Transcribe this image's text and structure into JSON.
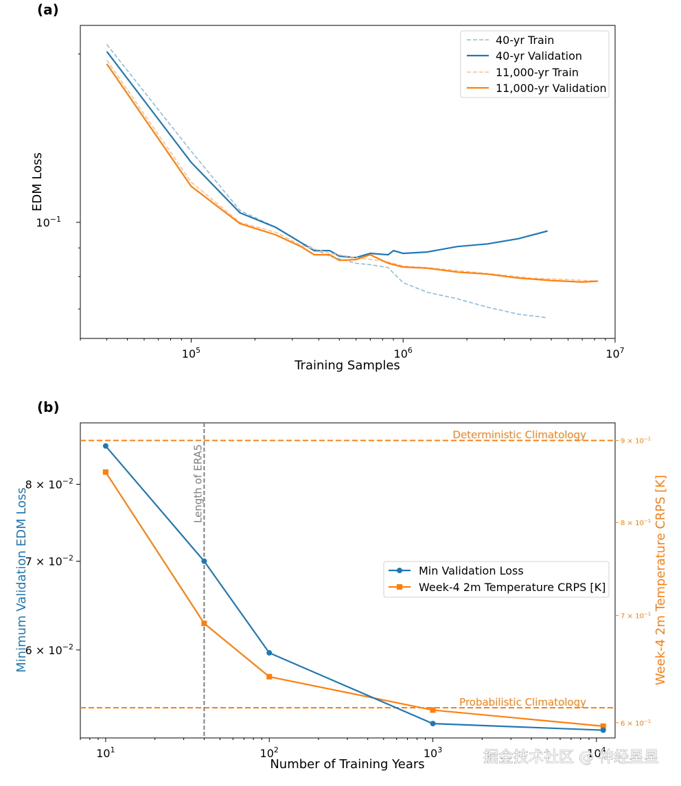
{
  "colors": {
    "blue": "#1f77b4",
    "orange": "#ff7f0e",
    "gray": "#7f7f7f",
    "light_blue": "#8fbbd9",
    "light_orange": "#ffbf86"
  },
  "panel_a": {
    "label": "(a)"
  },
  "panel_b": {
    "label": "(b)"
  },
  "watermark": "掘金技术社区 @ 神经星星",
  "chart_data": [
    {
      "type": "line",
      "panel": "(a)",
      "xlabel": "Training Samples",
      "ylabel": "EDM Loss",
      "xscale": "log",
      "yscale": "log",
      "xlim": [
        30000,
        10000000
      ],
      "ylim": [
        0.062,
        0.225
      ],
      "xticks": [
        {
          "value": 100000,
          "base": "10",
          "exp": "5"
        },
        {
          "value": 1000000,
          "base": "10",
          "exp": "6"
        },
        {
          "value": 10000000,
          "base": "10",
          "exp": "7"
        }
      ],
      "yticks": [
        {
          "value": 0.1,
          "base": "10",
          "exp": "−1"
        }
      ],
      "legend_position": "upper-right",
      "series": [
        {
          "name": "40-yr Train",
          "style": "dashed-light-blue",
          "x": [
            40000,
            100000,
            170000,
            250000,
            330000,
            450000,
            600000,
            700000,
            850000,
            1000000,
            1300000,
            1800000,
            2500000,
            3500000,
            4800000
          ],
          "y": [
            0.208,
            0.134,
            0.105,
            0.098,
            0.092,
            0.087,
            0.0845,
            0.084,
            0.083,
            0.078,
            0.075,
            0.073,
            0.0705,
            0.0685,
            0.0675
          ]
        },
        {
          "name": "40-yr Validation",
          "style": "solid-blue",
          "x": [
            40000,
            100000,
            170000,
            250000,
            330000,
            380000,
            450000,
            500000,
            600000,
            700000,
            850000,
            900000,
            1000000,
            1300000,
            1800000,
            2500000,
            3500000,
            4800000
          ],
          "y": [
            0.202,
            0.128,
            0.104,
            0.098,
            0.092,
            0.089,
            0.089,
            0.087,
            0.0865,
            0.088,
            0.0875,
            0.089,
            0.088,
            0.0885,
            0.0905,
            0.0915,
            0.0935,
            0.0965
          ]
        },
        {
          "name": "11,000-yr Train",
          "style": "dashed-light-orange",
          "x": [
            40000,
            100000,
            170000,
            250000,
            330000,
            450000,
            600000,
            850000,
            1000000,
            1300000,
            1800000,
            2500000,
            4000000,
            6000000,
            8300000
          ],
          "y": [
            0.195,
            0.118,
            0.1,
            0.096,
            0.091,
            0.088,
            0.0865,
            0.085,
            0.0835,
            0.083,
            0.082,
            0.081,
            0.0795,
            0.079,
            0.0785
          ]
        },
        {
          "name": "11,000-yr Validation",
          "style": "solid-orange",
          "x": [
            40000,
            100000,
            170000,
            250000,
            330000,
            380000,
            450000,
            500000,
            600000,
            700000,
            850000,
            1000000,
            1300000,
            1800000,
            2500000,
            3500000,
            5000000,
            7000000,
            8300000
          ],
          "y": [
            0.192,
            0.116,
            0.0995,
            0.095,
            0.0905,
            0.0875,
            0.0875,
            0.0855,
            0.0858,
            0.0875,
            0.0845,
            0.0832,
            0.0828,
            0.0815,
            0.0808,
            0.0795,
            0.0787,
            0.0782,
            0.0785
          ]
        }
      ]
    },
    {
      "type": "line",
      "panel": "(b)",
      "xlabel": "Number of Training Years",
      "ylabel_left": "Minimum Validation EDM Loss",
      "ylabel_right": "Week-4 2m Temperature CRPS [K]",
      "xscale": "log",
      "yscale": "log",
      "xlim": [
        7,
        13000
      ],
      "ylim_left": [
        0.0515,
        0.089
      ],
      "ylim_right": [
        0.587,
        0.923
      ],
      "xticks": [
        {
          "value": 10,
          "base": "10",
          "exp": "1"
        },
        {
          "value": 100,
          "base": "10",
          "exp": "2"
        },
        {
          "value": 1000,
          "base": "10",
          "exp": "3"
        },
        {
          "value": 10000,
          "base": "10",
          "exp": "4"
        }
      ],
      "yticks_left": [
        {
          "value": 0.06,
          "mant": "6 × 10",
          "exp": "−2"
        },
        {
          "value": 0.07,
          "mant": "7 × 10",
          "exp": "−2"
        },
        {
          "value": 0.08,
          "mant": "8 × 10",
          "exp": "−2"
        }
      ],
      "yticks_right": [
        {
          "value": 0.6,
          "mant": "6 × 10",
          "exp": "−1"
        },
        {
          "value": 0.7,
          "mant": "7 × 10",
          "exp": "−1"
        },
        {
          "value": 0.8,
          "mant": "8 × 10",
          "exp": "−1"
        },
        {
          "value": 0.9,
          "mant": "9 × 10",
          "exp": "−1"
        }
      ],
      "legend_position": "center-right",
      "series": [
        {
          "name": "Min Validation Loss",
          "axis": "left",
          "marker": "circle",
          "x": [
            10,
            40,
            100,
            1000,
            11000
          ],
          "y": [
            0.0855,
            0.07,
            0.0597,
            0.0528,
            0.0522
          ]
        },
        {
          "name": "Week-4 2m Temperature CRPS [K]",
          "axis": "right",
          "marker": "square",
          "x": [
            10,
            40,
            100,
            1000,
            11000
          ],
          "y": [
            0.86,
            0.692,
            0.641,
            0.611,
            0.597
          ]
        }
      ],
      "reference_lines": [
        {
          "label": "Deterministic Climatology",
          "axis": "right",
          "value": 0.9
        },
        {
          "label": "Probabilistic Climatology",
          "axis": "right",
          "value": 0.613
        }
      ],
      "vertical_line": {
        "label": "Length of ERA5",
        "x": 40
      }
    }
  ]
}
